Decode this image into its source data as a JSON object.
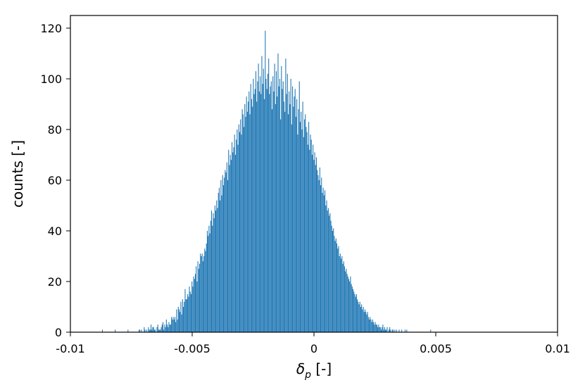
{
  "chart_data": {
    "type": "bar",
    "title": "",
    "xlabel_main": "δ",
    "xlabel_sub": "p",
    "xlabel_unit": " [-]",
    "ylabel": "counts [-]",
    "xlim": [
      -0.01,
      0.01
    ],
    "ylim": [
      0,
      125
    ],
    "xticks": [
      {
        "value": -0.01,
        "label": "-0.01"
      },
      {
        "value": -0.005,
        "label": "-0.005"
      },
      {
        "value": 0,
        "label": "0"
      },
      {
        "value": 0.005,
        "label": "0.005"
      },
      {
        "value": 0.01,
        "label": "0.01"
      }
    ],
    "yticks": [
      {
        "value": 0,
        "label": "0"
      },
      {
        "value": 20,
        "label": "20"
      },
      {
        "value": 40,
        "label": "40"
      },
      {
        "value": 60,
        "label": "60"
      },
      {
        "value": 80,
        "label": "80"
      },
      {
        "value": 100,
        "label": "100"
      },
      {
        "value": 120,
        "label": "120"
      }
    ],
    "bin_start": -0.0087,
    "bin_width": 3.5e-05,
    "series": [
      {
        "color": "#1f77b4",
        "values": [
          1,
          0,
          0,
          0,
          0,
          0,
          0,
          0,
          0,
          0,
          0,
          0,
          0,
          0,
          0,
          1,
          0,
          0,
          0,
          0,
          0,
          0,
          0,
          0,
          0,
          0,
          0,
          0,
          0,
          0,
          1,
          0,
          0,
          0,
          0,
          0,
          0,
          0,
          0,
          0,
          0,
          0,
          0,
          1,
          1,
          0,
          1,
          0,
          0,
          2,
          1,
          0,
          1,
          0,
          2,
          1,
          1,
          3,
          1,
          2,
          2,
          1,
          1,
          0,
          2,
          3,
          1,
          1,
          1,
          2,
          3,
          4,
          1,
          3,
          2,
          5,
          3,
          2,
          4,
          3,
          3,
          6,
          5,
          6,
          5,
          6,
          4,
          9,
          5,
          10,
          9,
          8,
          12,
          7,
          13,
          10,
          12,
          17,
          13,
          13,
          15,
          14,
          18,
          16,
          15,
          20,
          18,
          22,
          21,
          23,
          26,
          20,
          28,
          25,
          27,
          31,
          30,
          31,
          28,
          30,
          33,
          32,
          35,
          40,
          38,
          42,
          39,
          44,
          48,
          42,
          47,
          45,
          50,
          48,
          52,
          49,
          55,
          57,
          52,
          60,
          54,
          62,
          58,
          61,
          64,
          63,
          67,
          60,
          72,
          66,
          70,
          68,
          75,
          71,
          73,
          78,
          70,
          76,
          80,
          74,
          82,
          79,
          84,
          78,
          88,
          86,
          81,
          90,
          85,
          93,
          87,
          91,
          95,
          86,
          98,
          92,
          89,
          100,
          94,
          96,
          103,
          91,
          99,
          106,
          95,
          101,
          94,
          109,
          98,
          104,
          92,
          119,
          100,
          96,
          102,
          108,
          94,
          97,
          99,
          88,
          101,
          95,
          106,
          90,
          103,
          93,
          110,
          97,
          100,
          84,
          105,
          96,
          99,
          91,
          87,
          108,
          94,
          102,
          86,
          95,
          90,
          100,
          82,
          97,
          89,
          93,
          96,
          85,
          92,
          78,
          88,
          99,
          83,
          87,
          80,
          91,
          77,
          84,
          86,
          81,
          79,
          74,
          83,
          72,
          78,
          76,
          70,
          74,
          68,
          71,
          66,
          69,
          64,
          62,
          60,
          65,
          58,
          61,
          55,
          57,
          54,
          56,
          50,
          52,
          48,
          49,
          46,
          47,
          44,
          42,
          40,
          41,
          38,
          36,
          37,
          35,
          33,
          34,
          30,
          31,
          29,
          30,
          27,
          28,
          26,
          24,
          25,
          23,
          22,
          21,
          20,
          22,
          19,
          18,
          17,
          16,
          15,
          14,
          15,
          13,
          12,
          11,
          12,
          10,
          11,
          9,
          10,
          8,
          9,
          8,
          7,
          8,
          6,
          5,
          6,
          5,
          4,
          5,
          4,
          3,
          4,
          3,
          3,
          2,
          3,
          2,
          2,
          1,
          2,
          3,
          1,
          2,
          1,
          1,
          2,
          0,
          1,
          2,
          1,
          0,
          1,
          1,
          0,
          1,
          0,
          1,
          0,
          0,
          1,
          0,
          0,
          1,
          0,
          0,
          0,
          1,
          0,
          1,
          0,
          0,
          0,
          0,
          0,
          0,
          0,
          0,
          0,
          0,
          0,
          0,
          0,
          0,
          0,
          0,
          0,
          0,
          0,
          0,
          0,
          0,
          0,
          0,
          0,
          0,
          0,
          1
        ]
      }
    ]
  }
}
